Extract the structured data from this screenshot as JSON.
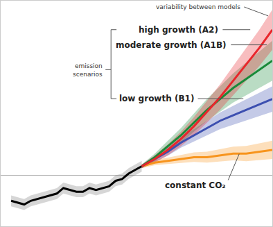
{
  "chart_data": {
    "type": "line",
    "xlim": [
      1892,
      2100
    ],
    "ylim": [
      -1.4,
      4.8
    ],
    "xticks": [],
    "yticks": [],
    "tick_labels": false,
    "grid": false,
    "baseline": 0,
    "annotations": [
      "variability between models",
      "emission scenarios"
    ],
    "series": [
      {
        "color": "#000000",
        "x": [
          1900,
          1905,
          1910,
          1915,
          1920,
          1925,
          1930,
          1935,
          1940,
          1945,
          1950,
          1955,
          1960,
          1965,
          1970,
          1975,
          1980,
          1985,
          1990,
          1995,
          2000
        ],
        "values": [
          -0.7,
          -0.75,
          -0.8,
          -0.7,
          -0.65,
          -0.6,
          -0.55,
          -0.5,
          -0.35,
          -0.4,
          -0.45,
          -0.45,
          -0.35,
          -0.4,
          -0.35,
          -0.3,
          -0.15,
          -0.1,
          0.05,
          0.15,
          0.25
        ],
        "lower": [
          -0.85,
          -0.9,
          -0.95,
          -0.85,
          -0.8,
          -0.75,
          -0.7,
          -0.65,
          -0.5,
          -0.55,
          -0.6,
          -0.6,
          -0.5,
          -0.55,
          -0.5,
          -0.45,
          -0.3,
          -0.25,
          -0.1,
          0.0,
          0.1
        ],
        "upper": [
          -0.55,
          -0.6,
          -0.65,
          -0.55,
          -0.5,
          -0.45,
          -0.4,
          -0.35,
          -0.2,
          -0.25,
          -0.3,
          -0.3,
          -0.2,
          -0.25,
          -0.2,
          -0.15,
          0.0,
          0.05,
          0.2,
          0.3,
          0.4
        ]
      },
      {
        "name": "constant CO₂",
        "color": "#f7941d",
        "x": [
          2000,
          2010,
          2020,
          2030,
          2040,
          2050,
          2060,
          2070,
          2080,
          2090,
          2100
        ],
        "values": [
          0.25,
          0.35,
          0.4,
          0.45,
          0.5,
          0.5,
          0.55,
          0.6,
          0.6,
          0.65,
          0.7
        ],
        "lower": [
          0.2,
          0.28,
          0.31,
          0.34,
          0.37,
          0.35,
          0.38,
          0.41,
          0.39,
          0.42,
          0.45
        ],
        "upper": [
          0.3,
          0.42,
          0.49,
          0.56,
          0.63,
          0.65,
          0.72,
          0.79,
          0.81,
          0.88,
          0.95
        ]
      },
      {
        "name": "low growth (B1)",
        "color": "#3c4fb0",
        "x": [
          2000,
          2010,
          2020,
          2030,
          2040,
          2050,
          2060,
          2070,
          2080,
          2090,
          2100
        ],
        "values": [
          0.25,
          0.45,
          0.65,
          0.9,
          1.1,
          1.3,
          1.5,
          1.65,
          1.8,
          1.95,
          2.1
        ],
        "lower": [
          0.2,
          0.37,
          0.54,
          0.76,
          0.93,
          1.1,
          1.27,
          1.39,
          1.51,
          1.63,
          1.75
        ],
        "upper": [
          0.3,
          0.53,
          0.76,
          1.04,
          1.27,
          1.5,
          1.73,
          1.91,
          2.09,
          2.27,
          2.45
        ]
      },
      {
        "name": "moderate growth (A1B)",
        "color": "#1a8a3a",
        "x": [
          2000,
          2010,
          2020,
          2030,
          2040,
          2050,
          2060,
          2070,
          2080,
          2090,
          2100
        ],
        "values": [
          0.25,
          0.5,
          0.8,
          1.1,
          1.45,
          1.8,
          2.1,
          2.4,
          2.65,
          2.9,
          3.15
        ],
        "lower": [
          0.2,
          0.4,
          0.65,
          0.9,
          1.2,
          1.5,
          1.75,
          2.0,
          2.2,
          2.4,
          2.6
        ],
        "upper": [
          0.3,
          0.6,
          0.95,
          1.3,
          1.7,
          2.1,
          2.45,
          2.8,
          3.1,
          3.4,
          3.7
        ]
      },
      {
        "name": "high growth (A2)",
        "color": "#e8262b",
        "x": [
          2000,
          2010,
          2020,
          2030,
          2040,
          2050,
          2060,
          2070,
          2080,
          2090,
          2100
        ],
        "values": [
          0.25,
          0.45,
          0.7,
          1.0,
          1.35,
          1.75,
          2.15,
          2.6,
          3.05,
          3.5,
          4.0
        ],
        "lower": [
          0.2,
          0.35,
          0.55,
          0.8,
          1.1,
          1.45,
          1.8,
          2.2,
          2.6,
          3.0,
          3.45
        ],
        "upper": [
          0.3,
          0.55,
          0.85,
          1.2,
          1.6,
          2.05,
          2.5,
          3.0,
          3.5,
          4.0,
          4.55
        ]
      }
    ]
  }
}
